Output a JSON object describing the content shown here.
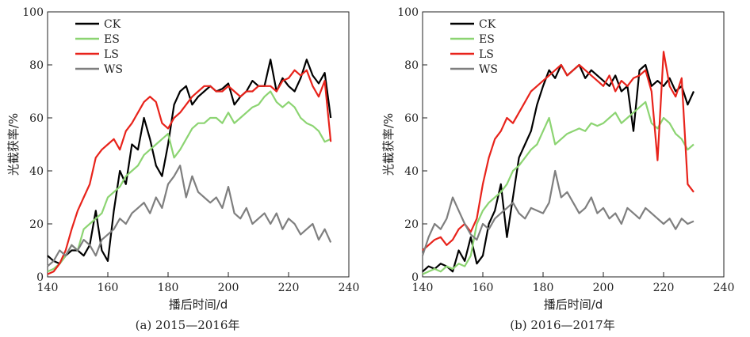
{
  "chart_data": [
    {
      "type": "line",
      "caption": "(a) 2015—2016年",
      "xlabel": "播后时间/d",
      "ylabel": "光截获率/%",
      "xlim": [
        140,
        240
      ],
      "ylim": [
        0,
        100
      ],
      "xticks": [
        "140",
        "160",
        "180",
        "200",
        "220",
        "240"
      ],
      "yticks": [
        "0",
        "20",
        "40",
        "60",
        "80",
        "100"
      ],
      "legend_position": "top-left",
      "series": [
        {
          "name": "CK",
          "color": "#000000",
          "x": [
            140,
            142,
            144,
            146,
            148,
            150,
            152,
            154,
            156,
            158,
            160,
            162,
            164,
            166,
            168,
            170,
            172,
            174,
            176,
            178,
            180,
            182,
            184,
            186,
            188,
            190,
            192,
            194,
            196,
            198,
            200,
            202,
            204,
            206,
            208,
            210,
            212,
            214,
            216,
            218,
            220,
            222,
            224,
            226,
            228,
            230,
            232,
            234
          ],
          "y": [
            8,
            6,
            5,
            8,
            10,
            10,
            8,
            12,
            25,
            10,
            6,
            25,
            40,
            35,
            50,
            48,
            60,
            52,
            42,
            38,
            50,
            65,
            70,
            72,
            65,
            68,
            70,
            72,
            70,
            71,
            73,
            65,
            68,
            70,
            74,
            72,
            72,
            82,
            70,
            75,
            72,
            70,
            75,
            82,
            76,
            73,
            77,
            60
          ]
        },
        {
          "name": "ES",
          "color": "#8cd472",
          "x": [
            140,
            142,
            144,
            146,
            148,
            150,
            152,
            154,
            156,
            158,
            160,
            162,
            164,
            166,
            168,
            170,
            172,
            174,
            176,
            178,
            180,
            182,
            184,
            186,
            188,
            190,
            192,
            194,
            196,
            198,
            200,
            202,
            204,
            206,
            208,
            210,
            212,
            214,
            216,
            218,
            220,
            222,
            224,
            226,
            228,
            230,
            232,
            234
          ],
          "y": [
            2,
            3,
            5,
            8,
            12,
            10,
            18,
            20,
            22,
            24,
            30,
            32,
            34,
            38,
            40,
            42,
            46,
            48,
            50,
            52,
            54,
            45,
            48,
            52,
            56,
            58,
            58,
            60,
            60,
            58,
            62,
            58,
            60,
            62,
            64,
            65,
            68,
            70,
            66,
            64,
            66,
            64,
            60,
            58,
            57,
            55,
            51,
            52
          ]
        },
        {
          "name": "LS",
          "color": "#e8231b",
          "x": [
            140,
            142,
            144,
            146,
            148,
            150,
            152,
            154,
            156,
            158,
            160,
            162,
            164,
            166,
            168,
            170,
            172,
            174,
            176,
            178,
            180,
            182,
            184,
            186,
            188,
            190,
            192,
            194,
            196,
            198,
            200,
            202,
            204,
            206,
            208,
            210,
            212,
            214,
            216,
            218,
            220,
            222,
            224,
            226,
            228,
            230,
            232,
            234
          ],
          "y": [
            1,
            2,
            5,
            10,
            18,
            25,
            30,
            35,
            45,
            48,
            50,
            52,
            48,
            55,
            58,
            62,
            66,
            68,
            66,
            58,
            56,
            60,
            62,
            65,
            68,
            70,
            72,
            72,
            70,
            70,
            72,
            70,
            68,
            70,
            70,
            72,
            72,
            72,
            70,
            74,
            75,
            78,
            76,
            78,
            72,
            68,
            74,
            51
          ]
        },
        {
          "name": "WS",
          "color": "#7f7f7f",
          "x": [
            140,
            142,
            144,
            146,
            148,
            150,
            152,
            154,
            156,
            158,
            160,
            162,
            164,
            166,
            168,
            170,
            172,
            174,
            176,
            178,
            180,
            182,
            184,
            186,
            188,
            190,
            192,
            194,
            196,
            198,
            200,
            202,
            204,
            206,
            208,
            210,
            212,
            214,
            216,
            218,
            220,
            222,
            224,
            226,
            228,
            230,
            232,
            234
          ],
          "y": [
            4,
            6,
            10,
            8,
            12,
            10,
            14,
            12,
            8,
            14,
            16,
            18,
            22,
            20,
            24,
            26,
            28,
            24,
            30,
            26,
            35,
            38,
            42,
            30,
            38,
            32,
            30,
            28,
            30,
            26,
            34,
            24,
            22,
            26,
            20,
            22,
            24,
            20,
            24,
            18,
            22,
            20,
            16,
            18,
            20,
            14,
            18,
            13
          ]
        }
      ]
    },
    {
      "type": "line",
      "caption": "(b) 2016—2017年",
      "xlabel": "播后时间/d",
      "ylabel": "光截获率/%",
      "xlim": [
        140,
        240
      ],
      "ylim": [
        0,
        100
      ],
      "xticks": [
        "140",
        "160",
        "180",
        "200",
        "220",
        "240"
      ],
      "yticks": [
        "0",
        "20",
        "40",
        "60",
        "80",
        "100"
      ],
      "legend_position": "top-left",
      "series": [
        {
          "name": "CK",
          "color": "#000000",
          "x": [
            140,
            142,
            144,
            146,
            148,
            150,
            152,
            154,
            156,
            158,
            160,
            162,
            164,
            166,
            168,
            170,
            172,
            174,
            176,
            178,
            180,
            182,
            184,
            186,
            188,
            190,
            192,
            194,
            196,
            198,
            200,
            202,
            204,
            206,
            208,
            210,
            212,
            214,
            216,
            218,
            220,
            222,
            224,
            226,
            228,
            230
          ],
          "y": [
            2,
            4,
            3,
            5,
            4,
            2,
            10,
            6,
            15,
            5,
            8,
            20,
            25,
            35,
            15,
            30,
            45,
            50,
            55,
            65,
            72,
            78,
            75,
            80,
            76,
            78,
            80,
            75,
            78,
            76,
            74,
            72,
            76,
            70,
            72,
            55,
            78,
            80,
            72,
            74,
            72,
            75,
            70,
            72,
            65,
            70
          ]
        },
        {
          "name": "ES",
          "color": "#8cd472",
          "x": [
            140,
            142,
            144,
            146,
            148,
            150,
            152,
            154,
            156,
            158,
            160,
            162,
            164,
            166,
            168,
            170,
            172,
            174,
            176,
            178,
            180,
            182,
            184,
            186,
            188,
            190,
            192,
            194,
            196,
            198,
            200,
            202,
            204,
            206,
            208,
            210,
            212,
            214,
            216,
            218,
            220,
            222,
            224,
            226,
            228,
            230
          ],
          "y": [
            1,
            2,
            3,
            2,
            4,
            3,
            5,
            4,
            8,
            20,
            25,
            28,
            30,
            32,
            35,
            40,
            42,
            45,
            48,
            50,
            55,
            60,
            50,
            52,
            54,
            55,
            56,
            55,
            58,
            57,
            58,
            60,
            62,
            58,
            60,
            62,
            64,
            66,
            58,
            56,
            60,
            58,
            54,
            52,
            48,
            50
          ]
        },
        {
          "name": "LS",
          "color": "#e8231b",
          "x": [
            140,
            142,
            144,
            146,
            148,
            150,
            152,
            154,
            156,
            158,
            160,
            162,
            164,
            166,
            168,
            170,
            172,
            174,
            176,
            178,
            180,
            182,
            184,
            186,
            188,
            190,
            192,
            194,
            196,
            198,
            200,
            202,
            204,
            206,
            208,
            210,
            212,
            214,
            216,
            218,
            220,
            222,
            224,
            226,
            228,
            230
          ],
          "y": [
            10,
            12,
            14,
            15,
            12,
            14,
            18,
            20,
            17,
            22,
            35,
            45,
            52,
            55,
            60,
            58,
            62,
            66,
            70,
            72,
            74,
            76,
            78,
            80,
            76,
            78,
            80,
            78,
            76,
            74,
            72,
            76,
            70,
            74,
            72,
            75,
            76,
            78,
            70,
            44,
            85,
            72,
            68,
            75,
            35,
            32
          ]
        },
        {
          "name": "WS",
          "color": "#7f7f7f",
          "x": [
            140,
            142,
            144,
            146,
            148,
            150,
            152,
            154,
            156,
            158,
            160,
            162,
            164,
            166,
            168,
            170,
            172,
            174,
            176,
            178,
            180,
            182,
            184,
            186,
            188,
            190,
            192,
            194,
            196,
            198,
            200,
            202,
            204,
            206,
            208,
            210,
            212,
            214,
            216,
            218,
            220,
            222,
            224,
            226,
            228,
            230
          ],
          "y": [
            8,
            15,
            20,
            18,
            22,
            30,
            25,
            20,
            16,
            14,
            20,
            18,
            22,
            24,
            26,
            28,
            24,
            22,
            26,
            25,
            24,
            28,
            40,
            30,
            32,
            28,
            24,
            26,
            30,
            24,
            26,
            22,
            24,
            20,
            26,
            24,
            22,
            26,
            24,
            22,
            20,
            22,
            18,
            22,
            20,
            21
          ]
        }
      ]
    }
  ]
}
